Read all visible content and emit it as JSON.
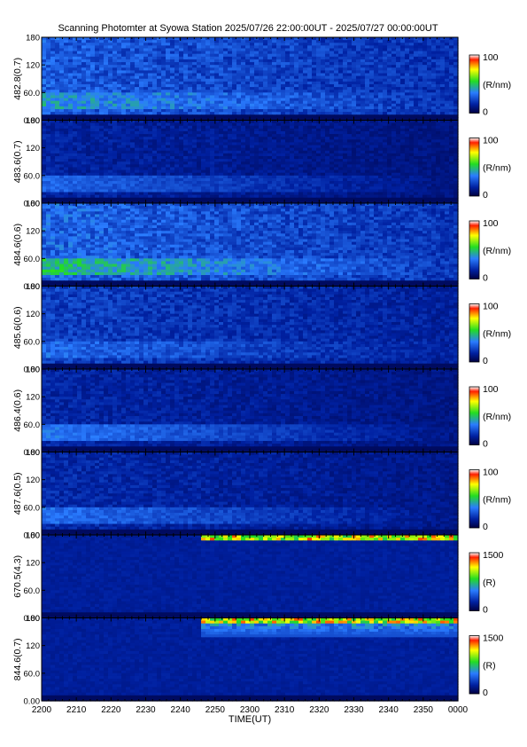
{
  "title": "Scanning Photomter at Syowa Station 2025/07/26 22:00:00UT - 2025/07/27 00:00:00UT",
  "xlabel": "TIME(UT)",
  "colors": {
    "dark": "#000040",
    "low": "#0020a0",
    "mid": "#2a7cff",
    "green": "#22dd22",
    "yellow": "#ffff00",
    "red": "#ff2000",
    "white": "#ffffff"
  },
  "chart_data": {
    "type": "heatmap",
    "x_ticks": [
      "2200",
      "2210",
      "2220",
      "2230",
      "2240",
      "2250",
      "2300",
      "2310",
      "2320",
      "2330",
      "2340",
      "2350",
      "0000"
    ],
    "y_ticks": [
      "0.00",
      "60.0",
      "120",
      "180"
    ],
    "ylim": [
      0,
      180
    ],
    "panels": [
      {
        "ylabel": "482.8(0.7)",
        "colorbar_label": "(R/nm)",
        "cmax": "100",
        "cmin": "0",
        "base": 0.28,
        "low_band": 0.08,
        "glow": 0
      },
      {
        "ylabel": "483.6(0.7)",
        "colorbar_label": "(R/nm)",
        "cmax": "100",
        "cmin": "0",
        "base": 0.15,
        "low_band": 0.1,
        "glow": 0
      },
      {
        "ylabel": "484.6(0.6)",
        "colorbar_label": "(R/nm)",
        "cmax": "100",
        "cmin": "0",
        "base": 0.3,
        "low_band": 0.12,
        "glow": 0
      },
      {
        "ylabel": "485.6(0.6)",
        "colorbar_label": "(R/nm)",
        "cmax": "100",
        "cmin": "0",
        "base": 0.22,
        "low_band": 0.06,
        "glow": 0
      },
      {
        "ylabel": "486.4(0.6)",
        "colorbar_label": "(R/nm)",
        "cmax": "100",
        "cmin": "0",
        "base": 0.16,
        "low_band": 0.12,
        "glow": 0
      },
      {
        "ylabel": "487.6(0.5)",
        "colorbar_label": "(R/nm)",
        "cmax": "100",
        "cmin": "0",
        "base": 0.17,
        "low_band": 0.1,
        "glow": 0
      },
      {
        "ylabel": "670.5(4.3)",
        "colorbar_label": "(R)",
        "cmax": "1500",
        "cmin": "0",
        "base": 0.04,
        "low_band": 0.04,
        "glow": 1
      },
      {
        "ylabel": "844.6(0.7)",
        "colorbar_label": "(R)",
        "cmax": "1500",
        "cmin": "0",
        "base": 0.06,
        "low_band": 0.03,
        "glow": 2
      }
    ]
  }
}
